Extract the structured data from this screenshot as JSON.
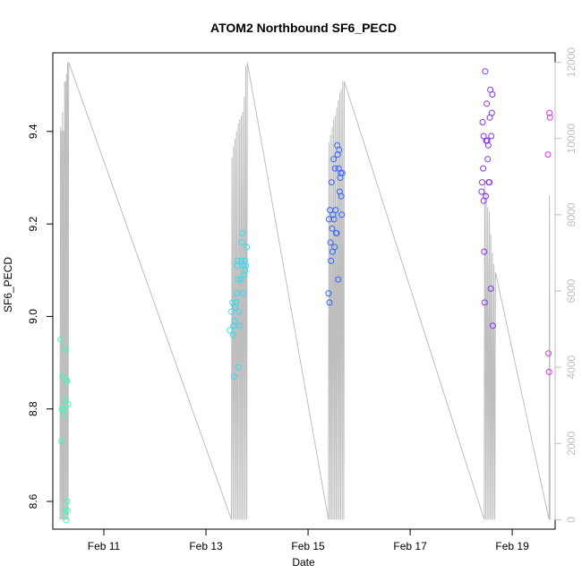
{
  "chart_data": {
    "type": "scatter",
    "title": "ATOM2 Northbound SF6_PECD",
    "xlabel": "Date",
    "ylabel": "SF6_PECD",
    "x_unit": "days of Feb (day 11 = Feb 11 00:00)",
    "xlim": [
      10.0,
      19.84
    ],
    "ylim": [
      8.54,
      9.57
    ],
    "x_ticks": [
      {
        "value": 11,
        "label": "Feb 11"
      },
      {
        "value": 13,
        "label": "Feb 13"
      },
      {
        "value": 15,
        "label": "Feb 15"
      },
      {
        "value": 17,
        "label": "Feb 17"
      },
      {
        "value": 19,
        "label": "Feb 19"
      }
    ],
    "y_ticks": [
      8.6,
      8.8,
      9.0,
      9.2,
      9.4
    ],
    "y_tick_labels": [
      "8.6",
      "8.8",
      "9.0",
      "9.2",
      "9.4"
    ],
    "secondary_axis": {
      "side": "right",
      "color": "#bebebe",
      "ylim": [
        -250,
        12250
      ],
      "ticks": [
        0,
        2000,
        4000,
        6000,
        8000,
        10000,
        12000
      ],
      "tick_labels": [
        "0",
        "2000",
        "4000",
        "6000",
        "8000",
        "10000",
        "12000"
      ]
    },
    "grid": false,
    "legend": "none",
    "points": [
      {
        "x": 10.15,
        "y": 8.95,
        "color": "#33ffbb"
      },
      {
        "x": 10.17,
        "y": 8.73,
        "color": "#33ffbb"
      },
      {
        "x": 10.19,
        "y": 8.87,
        "color": "#33ffbb"
      },
      {
        "x": 10.2,
        "y": 8.8,
        "color": "#33ffbb"
      },
      {
        "x": 10.21,
        "y": 8.79,
        "color": "#33ffbb"
      },
      {
        "x": 10.23,
        "y": 8.58,
        "color": "#33ffbb"
      },
      {
        "x": 10.25,
        "y": 8.93,
        "color": "#33ffbb"
      },
      {
        "x": 10.25,
        "y": 8.82,
        "color": "#33ffbb"
      },
      {
        "x": 10.26,
        "y": 8.56,
        "color": "#33ffbb"
      },
      {
        "x": 10.27,
        "y": 8.86,
        "color": "#33ffbb"
      },
      {
        "x": 10.28,
        "y": 8.86,
        "color": "#33ffbb"
      },
      {
        "x": 10.28,
        "y": 8.6,
        "color": "#33ffbb"
      },
      {
        "x": 10.29,
        "y": 8.58,
        "color": "#33ffbb"
      },
      {
        "x": 10.3,
        "y": 8.81,
        "color": "#33ffbb"
      },
      {
        "x": 10.18,
        "y": 8.8,
        "color": "#33ffbb"
      },
      {
        "x": 13.47,
        "y": 8.97,
        "color": "#33ddee"
      },
      {
        "x": 13.5,
        "y": 9.01,
        "color": "#33ddee"
      },
      {
        "x": 13.52,
        "y": 9.03,
        "color": "#33ddee"
      },
      {
        "x": 13.53,
        "y": 8.96,
        "color": "#33ddee"
      },
      {
        "x": 13.54,
        "y": 8.98,
        "color": "#33ddee"
      },
      {
        "x": 13.55,
        "y": 8.87,
        "color": "#33ddee"
      },
      {
        "x": 13.56,
        "y": 8.99,
        "color": "#33ddee"
      },
      {
        "x": 13.57,
        "y": 9.02,
        "color": "#33ddee"
      },
      {
        "x": 13.59,
        "y": 9.03,
        "color": "#33ddee"
      },
      {
        "x": 13.6,
        "y": 9.05,
        "color": "#33ddee"
      },
      {
        "x": 13.61,
        "y": 9.11,
        "color": "#33ddee"
      },
      {
        "x": 13.63,
        "y": 9.08,
        "color": "#33ddee"
      },
      {
        "x": 13.64,
        "y": 8.89,
        "color": "#33ddee"
      },
      {
        "x": 13.65,
        "y": 9.01,
        "color": "#33ddee"
      },
      {
        "x": 13.66,
        "y": 8.98,
        "color": "#33ddee"
      },
      {
        "x": 13.68,
        "y": 9.08,
        "color": "#33ddee"
      },
      {
        "x": 13.69,
        "y": 9.12,
        "color": "#33ddee"
      },
      {
        "x": 13.7,
        "y": 9.16,
        "color": "#33ddee"
      },
      {
        "x": 13.71,
        "y": 9.18,
        "color": "#33ddee"
      },
      {
        "x": 13.72,
        "y": 9.05,
        "color": "#33ddee"
      },
      {
        "x": 13.73,
        "y": 9.11,
        "color": "#33ddee"
      },
      {
        "x": 13.75,
        "y": 9.09,
        "color": "#33ddee"
      },
      {
        "x": 13.76,
        "y": 9.12,
        "color": "#33ddee"
      },
      {
        "x": 13.77,
        "y": 9.1,
        "color": "#33ddee"
      },
      {
        "x": 13.78,
        "y": 9.11,
        "color": "#33ddee"
      },
      {
        "x": 13.8,
        "y": 9.15,
        "color": "#33ddee"
      },
      {
        "x": 13.62,
        "y": 9.12,
        "color": "#33ddee"
      },
      {
        "x": 15.4,
        "y": 9.05,
        "color": "#3366ff"
      },
      {
        "x": 15.41,
        "y": 9.21,
        "color": "#3366ff"
      },
      {
        "x": 15.42,
        "y": 9.03,
        "color": "#3366ff"
      },
      {
        "x": 15.43,
        "y": 9.23,
        "color": "#3366ff"
      },
      {
        "x": 15.44,
        "y": 9.16,
        "color": "#3366ff"
      },
      {
        "x": 15.45,
        "y": 9.12,
        "color": "#3366ff"
      },
      {
        "x": 15.46,
        "y": 9.29,
        "color": "#3366ff"
      },
      {
        "x": 15.47,
        "y": 9.19,
        "color": "#3366ff"
      },
      {
        "x": 15.48,
        "y": 9.14,
        "color": "#3366ff"
      },
      {
        "x": 15.49,
        "y": 9.22,
        "color": "#3366ff"
      },
      {
        "x": 15.5,
        "y": 9.34,
        "color": "#3366ff"
      },
      {
        "x": 15.51,
        "y": 9.21,
        "color": "#3366ff"
      },
      {
        "x": 15.52,
        "y": 9.15,
        "color": "#3366ff"
      },
      {
        "x": 15.53,
        "y": 9.32,
        "color": "#3366ff"
      },
      {
        "x": 15.54,
        "y": 9.23,
        "color": "#3366ff"
      },
      {
        "x": 15.55,
        "y": 9.18,
        "color": "#3366ff"
      },
      {
        "x": 15.56,
        "y": 9.18,
        "color": "#3366ff"
      },
      {
        "x": 15.57,
        "y": 9.37,
        "color": "#3366ff"
      },
      {
        "x": 15.58,
        "y": 9.35,
        "color": "#3366ff"
      },
      {
        "x": 15.59,
        "y": 9.08,
        "color": "#3366ff"
      },
      {
        "x": 15.6,
        "y": 9.32,
        "color": "#3366ff"
      },
      {
        "x": 15.61,
        "y": 9.36,
        "color": "#3366ff"
      },
      {
        "x": 15.62,
        "y": 9.27,
        "color": "#3366ff"
      },
      {
        "x": 15.63,
        "y": 9.3,
        "color": "#3366ff"
      },
      {
        "x": 15.64,
        "y": 9.31,
        "color": "#3366ff"
      },
      {
        "x": 15.65,
        "y": 9.26,
        "color": "#3366ff"
      },
      {
        "x": 15.66,
        "y": 9.22,
        "color": "#3366ff"
      },
      {
        "x": 15.67,
        "y": 9.31,
        "color": "#3366ff"
      },
      {
        "x": 18.4,
        "y": 9.27,
        "color": "#8833ee"
      },
      {
        "x": 18.41,
        "y": 9.29,
        "color": "#8833ee"
      },
      {
        "x": 18.42,
        "y": 9.42,
        "color": "#8833ee"
      },
      {
        "x": 18.43,
        "y": 9.32,
        "color": "#8833ee"
      },
      {
        "x": 18.44,
        "y": 9.39,
        "color": "#8833ee"
      },
      {
        "x": 18.45,
        "y": 9.14,
        "color": "#8833ee"
      },
      {
        "x": 18.46,
        "y": 9.03,
        "color": "#8833ee"
      },
      {
        "x": 18.47,
        "y": 9.53,
        "color": "#8833ee"
      },
      {
        "x": 18.48,
        "y": 9.26,
        "color": "#8833ee"
      },
      {
        "x": 18.49,
        "y": 9.38,
        "color": "#8833ee"
      },
      {
        "x": 18.5,
        "y": 9.46,
        "color": "#8833ee"
      },
      {
        "x": 18.51,
        "y": 9.38,
        "color": "#8833ee"
      },
      {
        "x": 18.52,
        "y": 9.34,
        "color": "#8833ee"
      },
      {
        "x": 18.53,
        "y": 9.37,
        "color": "#8833ee"
      },
      {
        "x": 18.54,
        "y": 9.29,
        "color": "#8833ee"
      },
      {
        "x": 18.55,
        "y": 9.29,
        "color": "#8833ee"
      },
      {
        "x": 18.56,
        "y": 9.43,
        "color": "#8833ee"
      },
      {
        "x": 18.57,
        "y": 9.49,
        "color": "#8833ee"
      },
      {
        "x": 18.58,
        "y": 9.06,
        "color": "#8833ee"
      },
      {
        "x": 18.59,
        "y": 9.39,
        "color": "#8833ee"
      },
      {
        "x": 18.6,
        "y": 9.44,
        "color": "#8833ee"
      },
      {
        "x": 18.61,
        "y": 9.48,
        "color": "#8833ee"
      },
      {
        "x": 18.62,
        "y": 8.98,
        "color": "#8833ee"
      },
      {
        "x": 18.44,
        "y": 9.25,
        "color": "#8833ee"
      },
      {
        "x": 19.7,
        "y": 9.35,
        "color": "#dd33ee"
      },
      {
        "x": 19.71,
        "y": 8.92,
        "color": "#dd33ee"
      },
      {
        "x": 19.72,
        "y": 8.88,
        "color": "#dd33ee"
      },
      {
        "x": 19.73,
        "y": 9.44,
        "color": "#dd33ee"
      },
      {
        "x": 19.74,
        "y": 9.43,
        "color": "#dd33ee"
      }
    ],
    "secondary_series": {
      "name": "",
      "color": "#bebebe",
      "x": [
        10.14,
        10.15,
        10.16,
        10.17,
        10.18,
        10.19,
        10.2,
        10.21,
        10.22,
        10.23,
        10.24,
        10.25,
        10.26,
        10.27,
        10.28,
        10.29,
        10.3,
        10.31,
        13.5,
        13.51,
        13.53,
        13.54,
        13.56,
        13.57,
        13.59,
        13.6,
        13.62,
        13.63,
        13.65,
        13.66,
        13.68,
        13.69,
        13.71,
        13.72,
        13.74,
        13.75,
        13.77,
        13.78,
        13.8,
        13.81,
        15.4,
        15.41,
        15.43,
        15.44,
        15.46,
        15.47,
        15.49,
        15.5,
        15.52,
        15.53,
        15.55,
        15.56,
        15.58,
        15.59,
        15.61,
        15.62,
        15.64,
        15.65,
        15.67,
        15.68,
        15.7,
        15.71,
        18.45,
        18.46,
        18.48,
        18.49,
        18.51,
        18.52,
        18.54,
        18.55,
        18.57,
        18.58,
        18.6,
        18.61,
        18.63,
        18.64,
        18.66,
        18.67,
        19.72,
        19.73,
        19.74,
        19.75
      ],
      "y": [
        0,
        10300,
        0,
        10200,
        0,
        10700,
        0,
        10200,
        0,
        11500,
        0,
        11500,
        0,
        11700,
        0,
        12000,
        0,
        12000,
        0,
        9500,
        0,
        9800,
        0,
        10000,
        0,
        10200,
        0,
        10400,
        0,
        10500,
        0,
        10600,
        0,
        10700,
        0,
        11100,
        0,
        11900,
        0,
        12000,
        0,
        9900,
        0,
        10100,
        0,
        10300,
        0,
        10500,
        0,
        10600,
        0,
        10800,
        0,
        11000,
        0,
        11200,
        0,
        11300,
        0,
        11500,
        0,
        11500,
        0,
        8800,
        0,
        8600,
        0,
        8200,
        0,
        8100,
        0,
        7500,
        0,
        7000,
        0,
        6700,
        0,
        6500,
        0,
        8500,
        0,
        0
      ]
    }
  }
}
